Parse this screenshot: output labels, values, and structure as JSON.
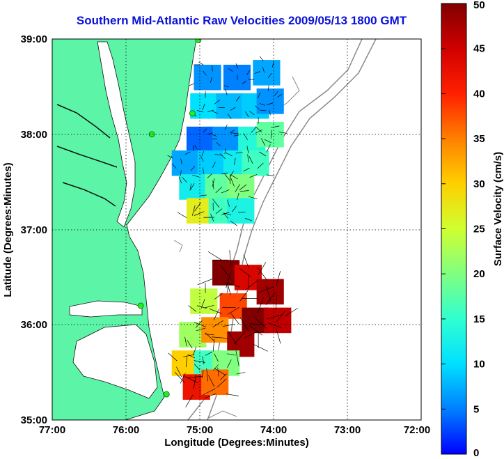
{
  "chart_data": {
    "type": "heatmap",
    "title": "Southern Mid-Atlantic Raw Velocities 2009/05/13 1800 GMT",
    "xlabel": "Longitude (Degrees:Minutes)",
    "ylabel": "Latitude (Degrees:Minutes)",
    "xlim": [
      -77,
      -72
    ],
    "ylim": [
      35,
      39
    ],
    "x_ticks": [
      {
        "value": -77,
        "label": "77:00"
      },
      {
        "value": -76,
        "label": "76:00"
      },
      {
        "value": -75,
        "label": "75:00"
      },
      {
        "value": -74,
        "label": "74:00"
      },
      {
        "value": -73,
        "label": "73:00"
      },
      {
        "value": -72,
        "label": "72:00"
      }
    ],
    "y_ticks": [
      {
        "value": 39,
        "label": "39:00"
      },
      {
        "value": 38,
        "label": "38:00"
      },
      {
        "value": 37,
        "label": "37:00"
      },
      {
        "value": 36,
        "label": "36:00"
      },
      {
        "value": 35,
        "label": "35:00"
      }
    ],
    "grid": true,
    "colorbar": {
      "label": "Surface Velocity (cm/s)",
      "min": 0,
      "max": 50,
      "ticks": [
        "0",
        "5",
        "10",
        "15",
        "20",
        "25",
        "30",
        "35",
        "40",
        "45",
        "50"
      ]
    },
    "colors": {
      "title": "#0a10d8",
      "land": "#5cf5a8",
      "bathymetry": "#8a8a8a",
      "station": "#22ee22"
    },
    "stations": [
      {
        "lon": -75.02,
        "lat": 38.99
      },
      {
        "lon": -75.1,
        "lat": 38.22
      },
      {
        "lon": -75.65,
        "lat": 38.0
      },
      {
        "lon": -75.8,
        "lat": 36.2
      },
      {
        "lon": -75.45,
        "lat": 35.27
      }
    ],
    "regions": [
      {
        "name": "",
        "cells": [
          {
            "lon": -74.9,
            "lat": 38.6,
            "speed": 6
          },
          {
            "lon": -74.5,
            "lat": 38.6,
            "speed": 5
          },
          {
            "lon": -74.1,
            "lat": 38.65,
            "speed": 7
          },
          {
            "lon": -74.95,
            "lat": 38.3,
            "speed": 10
          },
          {
            "lon": -74.6,
            "lat": 38.3,
            "speed": 8
          },
          {
            "lon": -74.25,
            "lat": 38.3,
            "speed": 9
          },
          {
            "lon": -74.05,
            "lat": 38.35,
            "speed": 6
          },
          {
            "lon": -75.0,
            "lat": 37.95,
            "speed": 4
          },
          {
            "lon": -74.65,
            "lat": 37.95,
            "speed": 6
          },
          {
            "lon": -74.3,
            "lat": 37.95,
            "speed": 14
          },
          {
            "lon": -74.05,
            "lat": 38.0,
            "speed": 18
          },
          {
            "lon": -75.2,
            "lat": 37.7,
            "speed": 7
          },
          {
            "lon": -74.85,
            "lat": 37.7,
            "speed": 9
          },
          {
            "lon": -74.5,
            "lat": 37.7,
            "speed": 12
          },
          {
            "lon": -74.25,
            "lat": 37.7,
            "speed": 16
          },
          {
            "lon": -75.1,
            "lat": 37.45,
            "speed": 12
          },
          {
            "lon": -74.75,
            "lat": 37.45,
            "speed": 18
          },
          {
            "lon": -74.45,
            "lat": 37.45,
            "speed": 20
          },
          {
            "lon": -75.0,
            "lat": 37.2,
            "speed": 27
          },
          {
            "lon": -74.7,
            "lat": 37.2,
            "speed": 16
          },
          {
            "lon": -74.45,
            "lat": 37.2,
            "speed": 13
          }
        ]
      },
      {
        "name": "",
        "cells": [
          {
            "lon": -74.65,
            "lat": 36.55,
            "speed": 50
          },
          {
            "lon": -74.35,
            "lat": 36.5,
            "speed": 44
          },
          {
            "lon": -74.05,
            "lat": 36.35,
            "speed": 48
          },
          {
            "lon": -74.95,
            "lat": 36.25,
            "speed": 24
          },
          {
            "lon": -74.55,
            "lat": 36.2,
            "speed": 38
          },
          {
            "lon": -74.25,
            "lat": 36.05,
            "speed": 50
          },
          {
            "lon": -73.95,
            "lat": 36.05,
            "speed": 46
          },
          {
            "lon": -75.1,
            "lat": 35.9,
            "speed": 22
          },
          {
            "lon": -74.8,
            "lat": 35.95,
            "speed": 34
          },
          {
            "lon": -74.45,
            "lat": 35.8,
            "speed": 48
          },
          {
            "lon": -75.2,
            "lat": 35.6,
            "speed": 30
          },
          {
            "lon": -74.9,
            "lat": 35.6,
            "speed": 16
          },
          {
            "lon": -74.65,
            "lat": 35.6,
            "speed": 20
          },
          {
            "lon": -75.05,
            "lat": 35.35,
            "speed": 42
          },
          {
            "lon": -74.8,
            "lat": 35.4,
            "speed": 36
          }
        ]
      }
    ]
  }
}
